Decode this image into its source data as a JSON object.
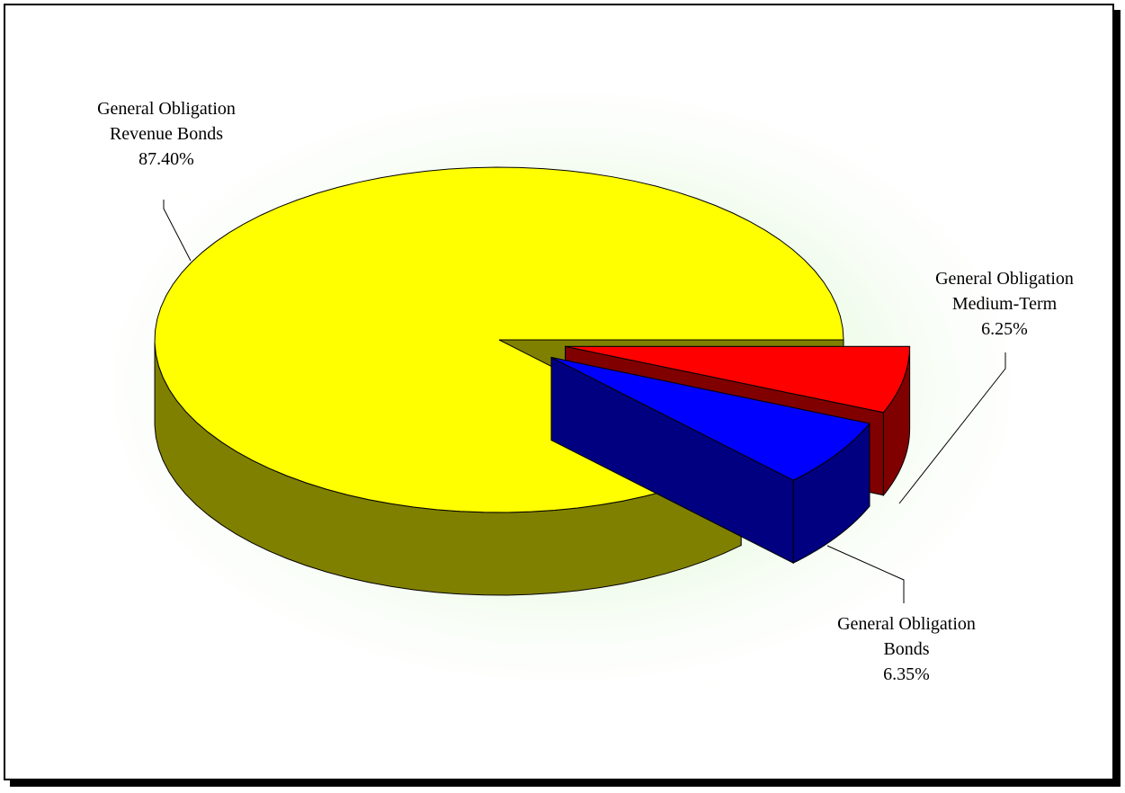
{
  "chart_data": {
    "type": "pie",
    "style": "3d-exploded",
    "slices": [
      {
        "lines": [
          "General Obligation",
          "Revenue Bonds",
          "87.40%"
        ],
        "value": 87.4,
        "color": "#FFFF00",
        "side_color": "#808000",
        "exploded": false
      },
      {
        "lines": [
          "General Obligation",
          "Bonds",
          "6.35%"
        ],
        "value": 6.35,
        "color": "#0000FF",
        "side_color": "#000080",
        "exploded": true
      },
      {
        "lines": [
          "General Obligation",
          "Medium-Term",
          "6.25%"
        ],
        "value": 6.25,
        "color": "#FF0000",
        "side_color": "#800000",
        "exploded": true
      }
    ],
    "legend": "none",
    "background_glow": "#e6f9e0"
  }
}
